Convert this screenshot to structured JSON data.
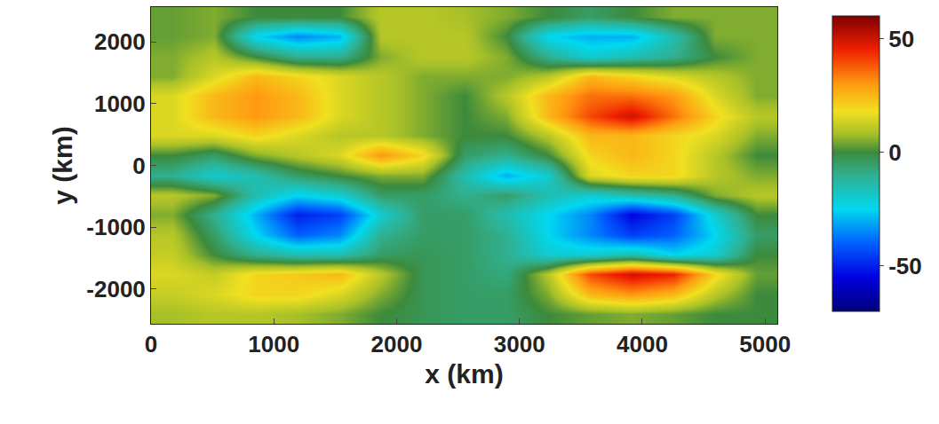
{
  "chart_data": {
    "type": "heatmap",
    "x_label": "x (km)",
    "y_label": "y (km)",
    "x": [
      170,
      510,
      850,
      1190,
      1530,
      1870,
      2210,
      2550,
      2890,
      3230,
      3570,
      3910,
      4250,
      4590,
      4930
    ],
    "y": [
      -2400,
      -2080,
      -1760,
      -1440,
      -1120,
      -800,
      -480,
      -160,
      160,
      480,
      800,
      1120,
      1440,
      1760,
      2080,
      2400
    ],
    "z": [
      [
        8,
        10,
        10,
        8,
        5,
        0,
        -3,
        -5,
        -5,
        0,
        3,
        5,
        3,
        0,
        0
      ],
      [
        12,
        15,
        20,
        20,
        15,
        5,
        -3,
        -5,
        -5,
        5,
        25,
        30,
        25,
        10,
        0
      ],
      [
        15,
        12,
        20,
        22,
        25,
        10,
        -3,
        -5,
        -8,
        10,
        40,
        50,
        45,
        20,
        3
      ],
      [
        12,
        0,
        -10,
        -15,
        -15,
        -5,
        -3,
        -5,
        -10,
        -20,
        -20,
        -15,
        -25,
        -20,
        0
      ],
      [
        10,
        -5,
        -25,
        -40,
        -35,
        -10,
        -5,
        -5,
        -10,
        -25,
        -35,
        -45,
        -40,
        -25,
        -5
      ],
      [
        5,
        -10,
        -30,
        -50,
        -45,
        -20,
        -5,
        -5,
        -15,
        -25,
        -35,
        -55,
        -45,
        -20,
        0
      ],
      [
        10,
        5,
        -15,
        -25,
        -20,
        -5,
        -5,
        -10,
        -5,
        -15,
        -20,
        -15,
        -10,
        5,
        10
      ],
      [
        -10,
        -20,
        -15,
        -5,
        0,
        5,
        5,
        -15,
        -30,
        -20,
        15,
        20,
        20,
        10,
        5
      ],
      [
        0,
        -5,
        5,
        10,
        15,
        30,
        20,
        -5,
        -10,
        0,
        20,
        25,
        20,
        10,
        0
      ],
      [
        15,
        15,
        20,
        15,
        10,
        10,
        5,
        0,
        0,
        10,
        25,
        25,
        20,
        15,
        5
      ],
      [
        15,
        25,
        30,
        25,
        15,
        10,
        5,
        0,
        5,
        25,
        40,
        50,
        35,
        20,
        10
      ],
      [
        15,
        25,
        30,
        25,
        15,
        10,
        5,
        0,
        10,
        25,
        35,
        35,
        30,
        15,
        5
      ],
      [
        5,
        15,
        25,
        20,
        15,
        10,
        5,
        5,
        5,
        10,
        25,
        20,
        15,
        10,
        5
      ],
      [
        5,
        10,
        0,
        -10,
        -10,
        5,
        10,
        10,
        5,
        -10,
        -20,
        -15,
        -10,
        0,
        5
      ],
      [
        3,
        5,
        -25,
        -35,
        -30,
        10,
        10,
        10,
        0,
        -25,
        -30,
        -30,
        -15,
        5,
        5
      ],
      [
        3,
        5,
        0,
        0,
        0,
        10,
        10,
        8,
        5,
        0,
        -5,
        0,
        5,
        5,
        5
      ]
    ],
    "xlim": [
      0,
      5100
    ],
    "xticks": [
      0,
      1000,
      2000,
      3000,
      4000,
      5000
    ],
    "ylim": [
      -2560,
      2560
    ],
    "yticks": [
      -2000,
      -1000,
      0,
      1000,
      2000
    ],
    "colorbar_range": [
      -70,
      60
    ],
    "colorbar_ticks": [
      -50,
      0,
      50
    ],
    "grid": false
  }
}
